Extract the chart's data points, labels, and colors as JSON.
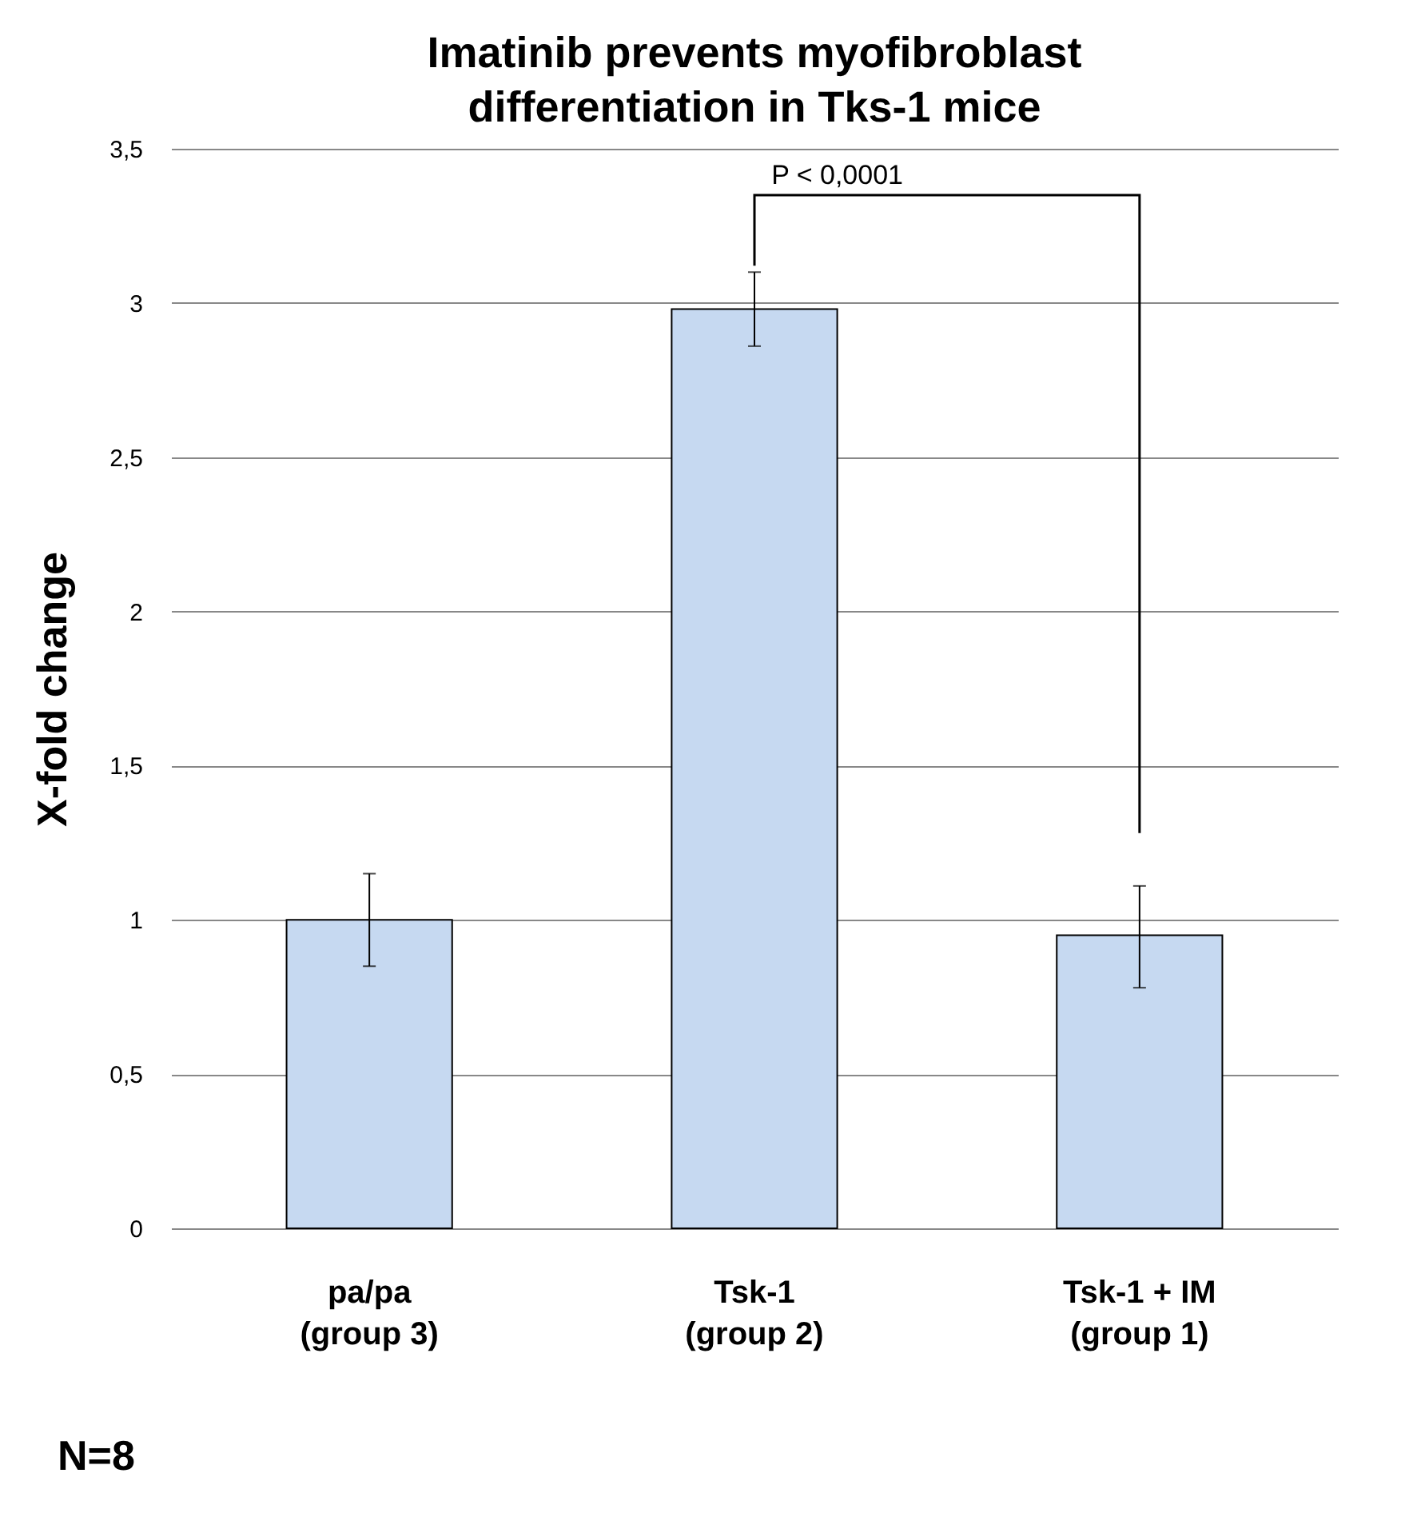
{
  "chart_data": {
    "type": "bar",
    "title": "Imatinib prevents myofibroblast differentiation in Tks-1 mice",
    "ylabel": "X-fold change",
    "categories": [
      "pa/pa (group 3)",
      "Tsk-1 (group 2)",
      "Tsk-1 + IM (group 1)"
    ],
    "values": [
      1.0,
      2.98,
      0.95
    ],
    "errors": [
      [
        0.85,
        1.15
      ],
      [
        2.86,
        3.1
      ],
      [
        0.78,
        1.11
      ]
    ],
    "color": "#c6d9f1",
    "ylim": [
      0,
      3.5
    ],
    "yticks": [
      0,
      {
        "value": 0.5,
        "label": "0,5"
      },
      1,
      {
        "value": 1.5,
        "label": "1,5"
      },
      2,
      {
        "value": 2.5,
        "label": "2,5"
      },
      3,
      {
        "value": 3.5,
        "label": "3,5"
      }
    ],
    "grid": "y",
    "annotations": [
      "P < 0,0001",
      "N=8"
    ]
  }
}
